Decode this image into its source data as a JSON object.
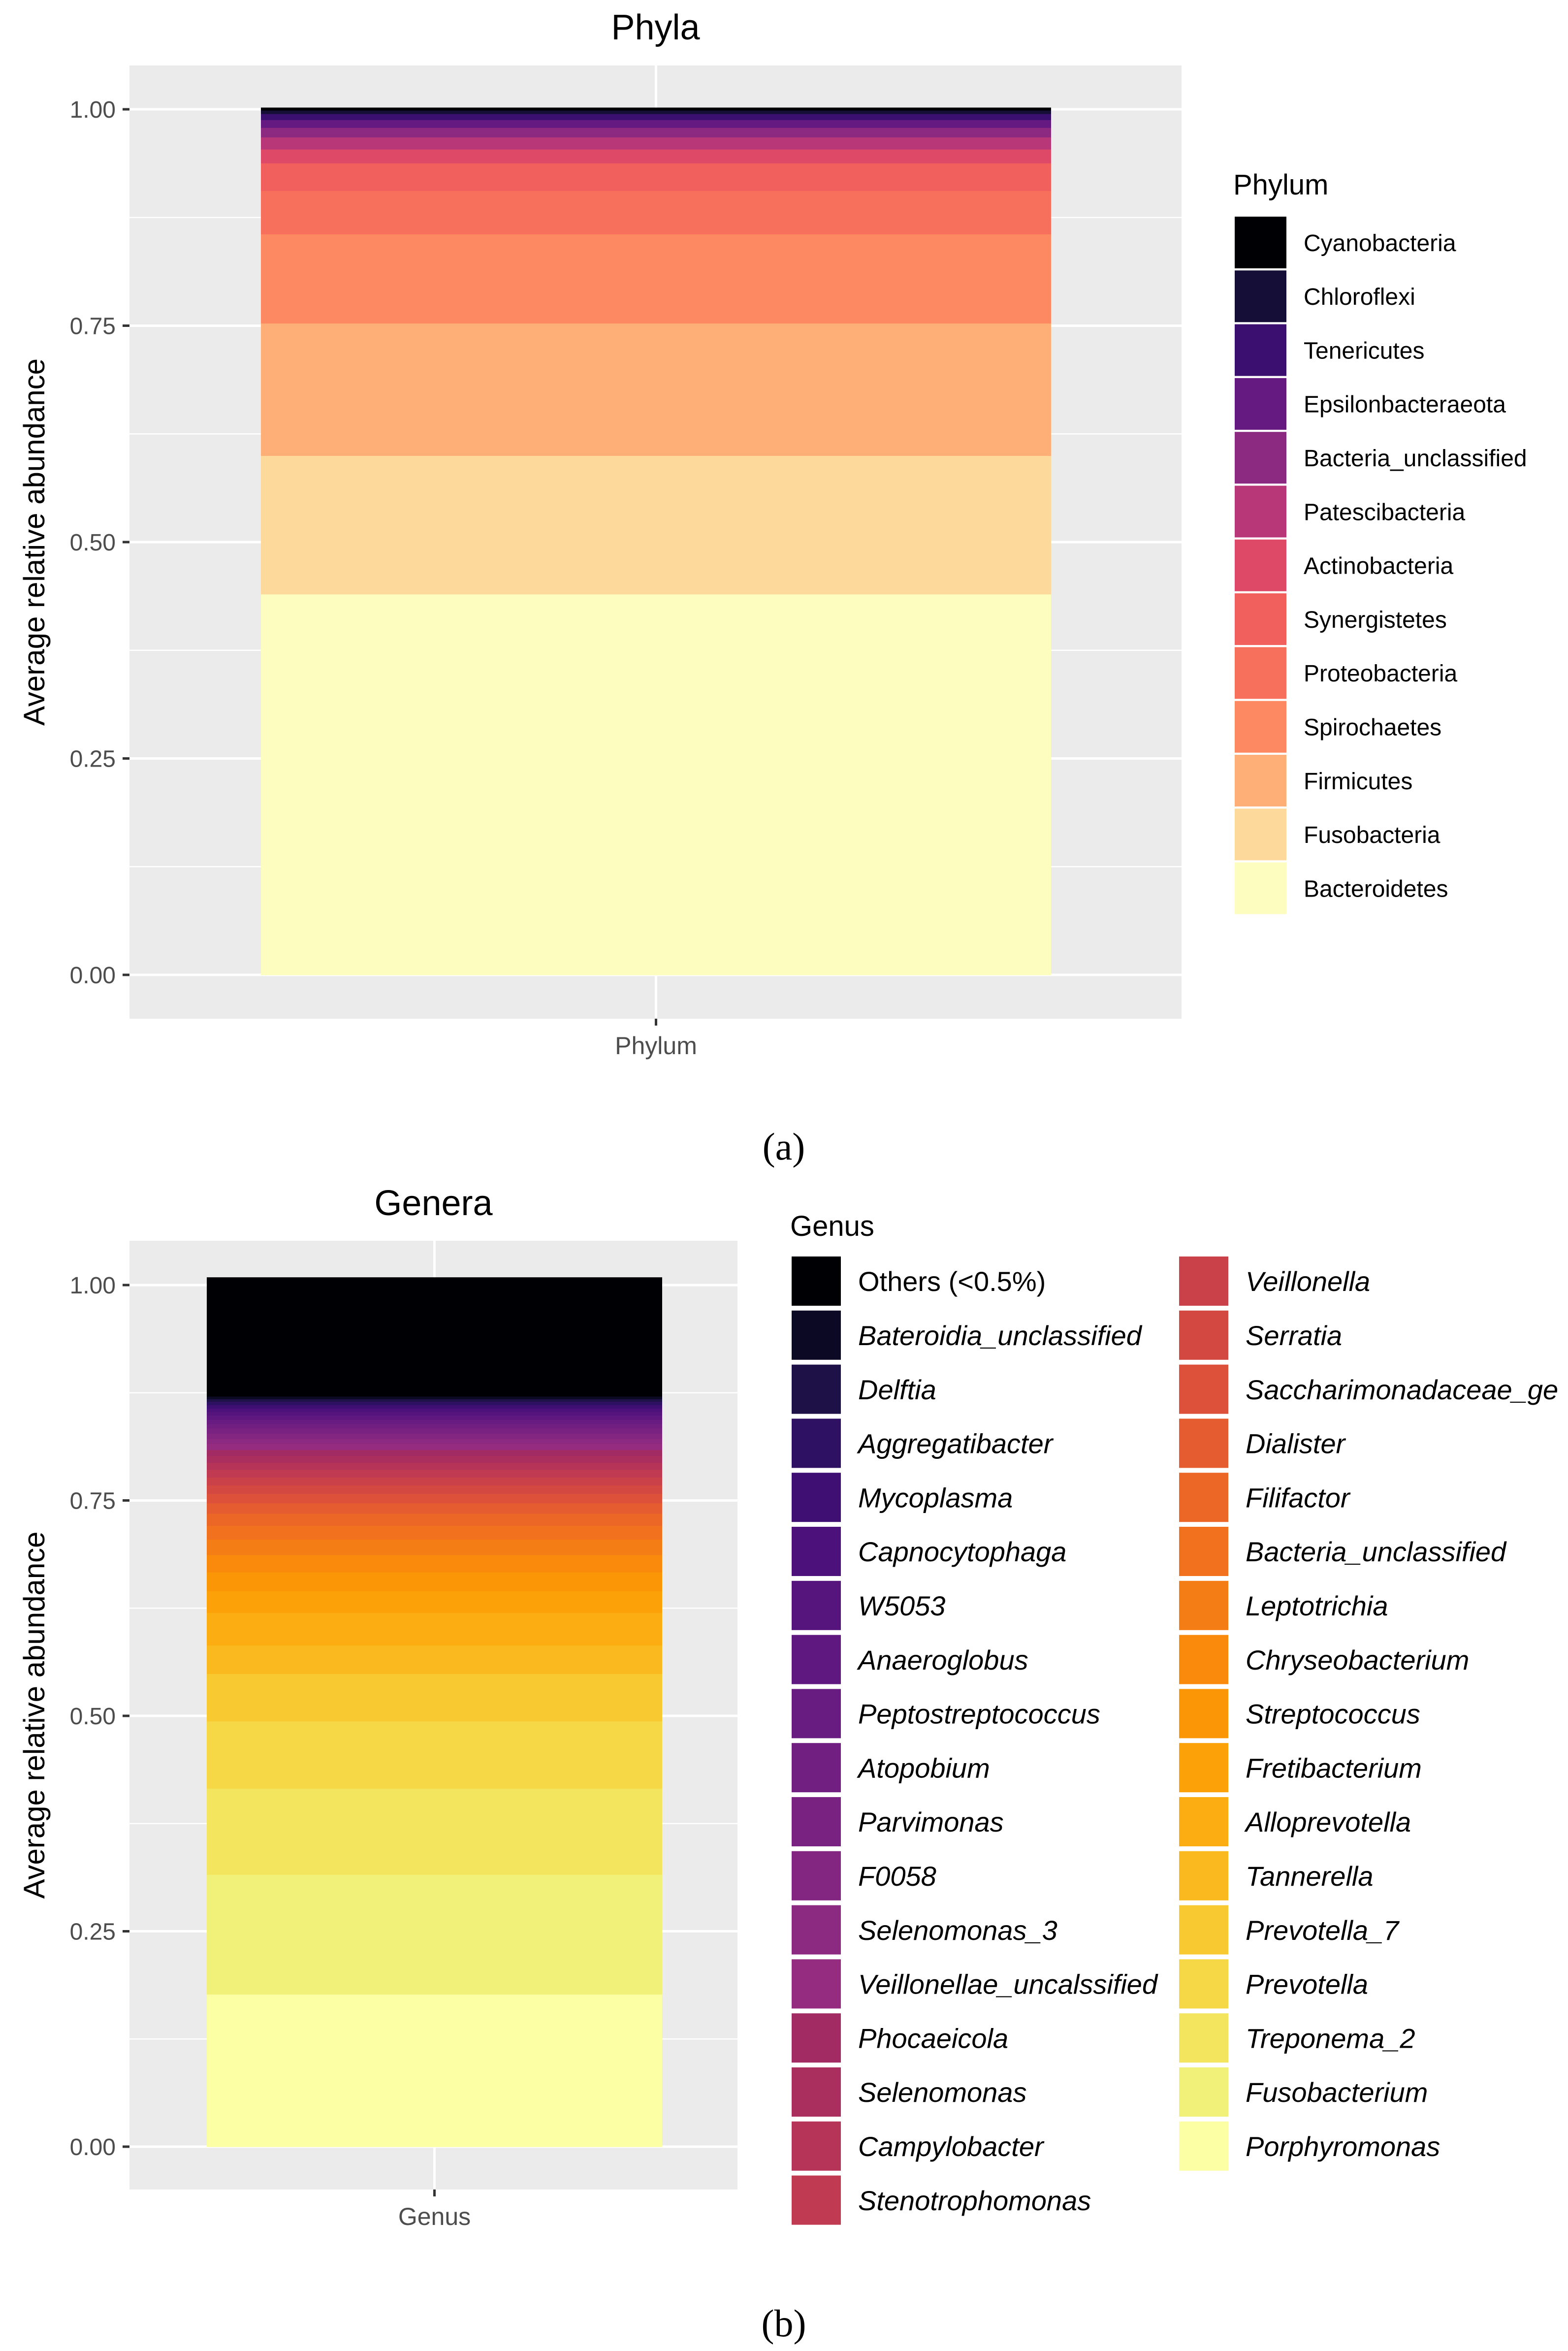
{
  "chart_data": [
    {
      "type": "bar",
      "stacked": true,
      "title": "Phyla",
      "xlabel": "",
      "ylabel": "Average relative abundance",
      "categories": [
        "Phylum"
      ],
      "ylim": [
        0,
        1
      ],
      "yticks": [
        "0.00",
        "0.25",
        "0.50",
        "0.75",
        "1.00"
      ],
      "grid": true,
      "legend_title": "Phylum",
      "legend_position": "right",
      "panel_label": "a",
      "series": [
        {
          "name": "Bacteroidetes",
          "value": 0.44,
          "color": "#FCFDBF"
        },
        {
          "name": "Fusobacteria",
          "value": 0.16,
          "color": "#FDDA9C"
        },
        {
          "name": "Firmicutes",
          "value": 0.153,
          "color": "#FEAF77"
        },
        {
          "name": "Spirochaetes",
          "value": 0.103,
          "color": "#FC8961"
        },
        {
          "name": "Proteobacteria",
          "value": 0.05,
          "color": "#F7705C"
        },
        {
          "name": "Synergistetes",
          "value": 0.032,
          "color": "#F1605D"
        },
        {
          "name": "Actinobacteria",
          "value": 0.016,
          "color": "#DE4968"
        },
        {
          "name": "Patescibacteria",
          "value": 0.014,
          "color": "#B73779"
        },
        {
          "name": "Bacteria_unclassified",
          "value": 0.011,
          "color": "#8C2981"
        },
        {
          "name": "Epsilonbacteraeota",
          "value": 0.009,
          "color": "#641A80"
        },
        {
          "name": "Tenericutes",
          "value": 0.007,
          "color": "#3B0F70"
        },
        {
          "name": "Chloroflexi",
          "value": 0.004,
          "color": "#150E37"
        },
        {
          "name": "Cyanobacteria",
          "value": 0.003,
          "color": "#000004"
        }
      ]
    },
    {
      "type": "bar",
      "stacked": true,
      "title": "Genera",
      "xlabel": "",
      "ylabel": "Average relative abundance",
      "categories": [
        "Genus"
      ],
      "ylim": [
        0,
        1
      ],
      "yticks": [
        "0.00",
        "0.25",
        "0.50",
        "0.75",
        "1.00"
      ],
      "grid": true,
      "legend_title": "Genus",
      "legend_position": "right",
      "panel_label": "b",
      "series": [
        {
          "name": "Porphyromonas",
          "value": 0.177,
          "color": "#FCFFA4"
        },
        {
          "name": "Fusobacterium",
          "value": 0.139,
          "color": "#F1F179"
        },
        {
          "name": "Treponema_2",
          "value": 0.1,
          "color": "#F3E55D"
        },
        {
          "name": "Prevotella",
          "value": 0.078,
          "color": "#F6D746"
        },
        {
          "name": "Prevotella_7",
          "value": 0.055,
          "color": "#F9C932"
        },
        {
          "name": "Tannerella",
          "value": 0.033,
          "color": "#FABA1F"
        },
        {
          "name": "Alloprevotella",
          "value": 0.038,
          "color": "#FCAD12"
        },
        {
          "name": "Fretibacterium",
          "value": 0.025,
          "color": "#FCA108"
        },
        {
          "name": "Streptococcus",
          "value": 0.022,
          "color": "#FB9606"
        },
        {
          "name": "Chryseobacterium",
          "value": 0.02,
          "color": "#F98A0B"
        },
        {
          "name": "Leptotrichia",
          "value": 0.018,
          "color": "#F57D15"
        },
        {
          "name": "Bacteria_unclassified",
          "value": 0.016,
          "color": "#F1711F"
        },
        {
          "name": "Filifactor",
          "value": 0.014,
          "color": "#EC6726"
        },
        {
          "name": "Dialister",
          "value": 0.012,
          "color": "#E55C30"
        },
        {
          "name": "Saccharimonadaceae_ge",
          "value": 0.011,
          "color": "#DD513A"
        },
        {
          "name": "Serratia",
          "value": 0.01,
          "color": "#D44842"
        },
        {
          "name": "Veillonella",
          "value": 0.009,
          "color": "#CB4149"
        },
        {
          "name": "Stenotrophomonas",
          "value": 0.009,
          "color": "#C03A51"
        },
        {
          "name": "Campylobacter",
          "value": 0.008,
          "color": "#B63458"
        },
        {
          "name": "Selenomonas",
          "value": 0.008,
          "color": "#AB2F5E"
        },
        {
          "name": "Phocaeicola",
          "value": 0.007,
          "color": "#A12B62"
        },
        {
          "name": "Veillonellae_uncalssified",
          "value": 0.007,
          "color": "#952C80"
        },
        {
          "name": "Selenomonas_3",
          "value": 0.006,
          "color": "#8C2981"
        },
        {
          "name": "F0058",
          "value": 0.006,
          "color": "#832681"
        },
        {
          "name": "Parvimonas",
          "value": 0.006,
          "color": "#7A2282"
        },
        {
          "name": "Atopobium",
          "value": 0.005,
          "color": "#711F81"
        },
        {
          "name": "Peptostreptococcus",
          "value": 0.005,
          "color": "#681C81"
        },
        {
          "name": "Anaeroglobus",
          "value": 0.005,
          "color": "#5F187F"
        },
        {
          "name": "W5053",
          "value": 0.004,
          "color": "#56147D"
        },
        {
          "name": "Capnocytophaga",
          "value": 0.004,
          "color": "#4C117A"
        },
        {
          "name": "Mycoplasma",
          "value": 0.004,
          "color": "#400F74"
        },
        {
          "name": "Aggregatibacter",
          "value": 0.004,
          "color": "#2F1163"
        },
        {
          "name": "Delftia",
          "value": 0.003,
          "color": "#1D1147"
        },
        {
          "name": "Bateroidia_unclassified",
          "value": 0.003,
          "color": "#0B0924"
        },
        {
          "name": "Others (<0.5%)",
          "value": 0.138,
          "color": "#000004"
        }
      ]
    }
  ],
  "figure": {
    "caption_a": "(a)",
    "caption_b": "(b)",
    "panel_background": "#EBEBEB",
    "grid_color": "#FFFFFF"
  }
}
